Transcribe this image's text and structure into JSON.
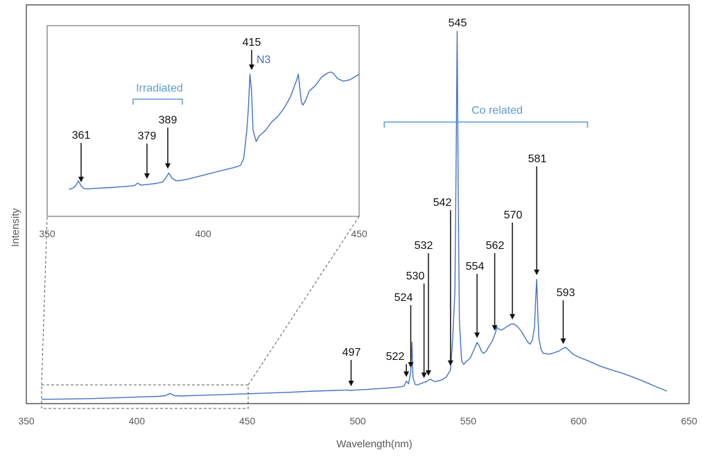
{
  "chart_data": {
    "type": "line",
    "xlabel": "Wavelength(nm)",
    "ylabel": "Intensity",
    "xlim": [
      350,
      650
    ],
    "ylim": [
      0,
      100
    ],
    "xticks": [
      "350",
      "400",
      "450",
      "500",
      "550",
      "600",
      "650"
    ],
    "grid": false,
    "line_color": "#4472c4",
    "group_color": "#5b9bd5",
    "series": [
      {
        "x": [
          357,
          370,
          380,
          390,
          400,
          410,
          413,
          415,
          417,
          420,
          430,
          440,
          450,
          460,
          470,
          480,
          490,
          495,
          497,
          499,
          505,
          510,
          515,
          518,
          520,
          521,
          522,
          523,
          524,
          524.5,
          525,
          526,
          527,
          528,
          529,
          530,
          531,
          532,
          533,
          534,
          535,
          538,
          540,
          542,
          543,
          544,
          544.5,
          545,
          545.5,
          546,
          547,
          548,
          549,
          550,
          551,
          552,
          553,
          554,
          555,
          556,
          557,
          558,
          559,
          560,
          561,
          562,
          563,
          564,
          565,
          566,
          567,
          568,
          569,
          570,
          571,
          572,
          573,
          574,
          575,
          576,
          577,
          578,
          579,
          580,
          580.5,
          581,
          581.5,
          582,
          583,
          584,
          585,
          586,
          587,
          588,
          589,
          590,
          591,
          592,
          593,
          594,
          595,
          596,
          597,
          598,
          599,
          600,
          605,
          610,
          615,
          620,
          625,
          630,
          635,
          640
        ],
        "y": [
          0.6,
          0.7,
          0.8,
          1.0,
          1.2,
          1.4,
          1.6,
          2.2,
          1.6,
          1.5,
          1.7,
          1.9,
          2.1,
          2.3,
          2.5,
          2.8,
          3.0,
          3.1,
          3.0,
          3.1,
          3.3,
          3.5,
          3.7,
          3.9,
          4.0,
          4.2,
          5.5,
          4.8,
          8.0,
          16.0,
          6.5,
          4.6,
          4.5,
          4.7,
          4.9,
          5.2,
          5.3,
          5.8,
          6.0,
          5.6,
          5.4,
          5.8,
          6.6,
          8.5,
          17.0,
          30.0,
          62.0,
          100.0,
          55.0,
          22.0,
          11.0,
          10.0,
          10.8,
          11.2,
          11.8,
          13.2,
          14.5,
          16.0,
          15.0,
          13.5,
          13.0,
          13.5,
          14.5,
          15.5,
          16.5,
          18.0,
          20.0,
          19.5,
          19.3,
          19.6,
          20.0,
          20.4,
          20.8,
          21.0,
          20.8,
          20.4,
          19.8,
          19.0,
          18.0,
          17.0,
          16.0,
          15.5,
          16.5,
          20.0,
          27.0,
          33.0,
          24.0,
          17.0,
          14.0,
          13.0,
          13.0,
          12.8,
          12.8,
          13.0,
          13.2,
          13.4,
          13.6,
          14.0,
          14.4,
          14.6,
          14.2,
          13.6,
          13.0,
          12.6,
          12.3,
          12.0,
          10.8,
          9.5,
          8.5,
          7.6,
          6.5,
          5.3,
          4.0,
          2.8
        ]
      }
    ],
    "annotations": [
      "497",
      "522",
      "524",
      "530",
      "532",
      "542",
      "545",
      "554",
      "562",
      "570",
      "581",
      "593"
    ],
    "group_label": "Co related",
    "inset": {
      "xlim": [
        350,
        450
      ],
      "xticks": [
        "350",
        "400",
        "450"
      ],
      "series": [
        {
          "x": [
            357,
            358,
            359,
            359.5,
            360,
            360.5,
            361,
            361.5,
            362,
            363,
            365,
            370,
            375,
            378,
            379,
            380,
            382,
            385,
            387,
            388,
            389,
            390,
            391,
            392,
            395,
            400,
            405,
            410,
            412,
            413,
            414,
            414.5,
            415,
            415.5,
            416,
            417,
            418,
            420,
            422,
            424,
            426,
            428,
            430,
            430.5,
            431,
            431.5,
            432,
            433,
            434,
            436,
            438,
            440,
            441,
            442,
            443,
            445,
            447,
            450
          ],
          "y": [
            1.0,
            1.3,
            2.0,
            3.0,
            4.0,
            3.0,
            2.0,
            1.5,
            1.2,
            1.1,
            1.3,
            1.6,
            2.0,
            2.3,
            3.2,
            2.5,
            2.7,
            3.1,
            3.6,
            5.0,
            6.8,
            5.0,
            4.2,
            4.0,
            4.6,
            6.0,
            7.4,
            8.8,
            9.5,
            12.0,
            22.0,
            30.0,
            42.0,
            36.0,
            22.0,
            18.0,
            20.0,
            22.0,
            25.0,
            27.0,
            30.0,
            34.0,
            40.0,
            42.0,
            37.0,
            32.0,
            31.0,
            33.0,
            36.0,
            38.0,
            41.0,
            42.5,
            42.8,
            42.0,
            40.5,
            39.5,
            40.0,
            42.0
          ]
        }
      ],
      "annotations": [
        "361",
        "379",
        "389",
        "415"
      ],
      "n3_label": "N3",
      "group_label": "Irradiated"
    }
  }
}
